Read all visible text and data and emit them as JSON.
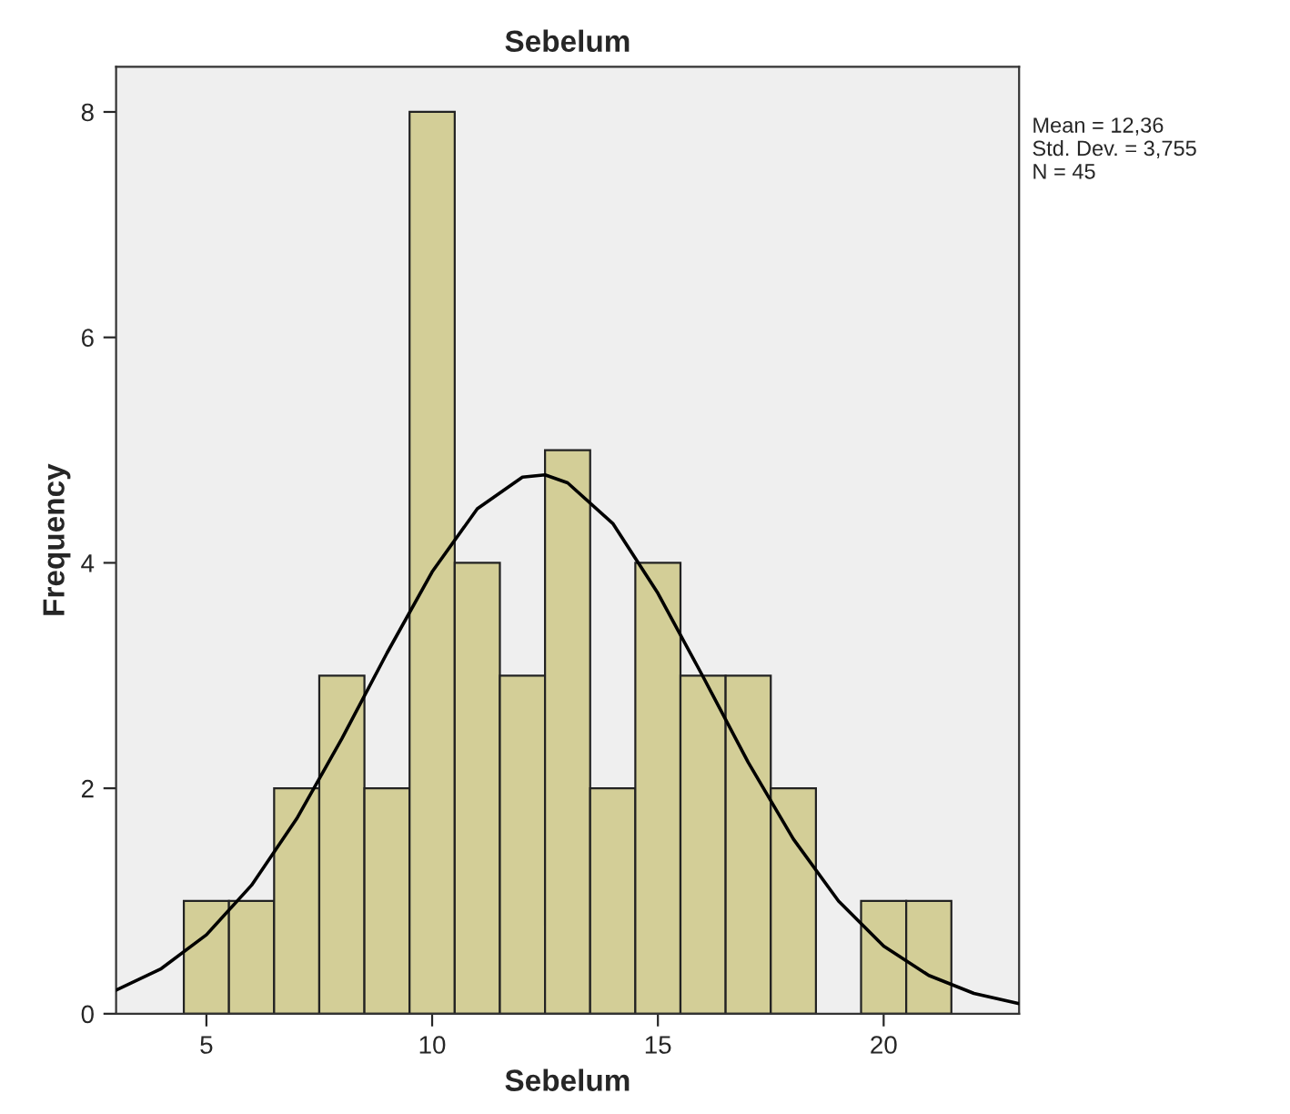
{
  "chart_data": {
    "type": "histogram",
    "title": "Sebelum",
    "xlabel": "Sebelum",
    "ylabel": "Frequency",
    "bins": [
      4.5,
      5.5,
      6.5,
      7.5,
      8.5,
      9.5,
      10.5,
      11.5,
      12.5,
      13.5,
      14.5,
      15.5,
      16.5,
      17.5,
      18.5,
      19.5,
      20.5,
      21.5
    ],
    "values": [
      1,
      1,
      2,
      3,
      2,
      8,
      4,
      3,
      5,
      2,
      4,
      3,
      3,
      2,
      0,
      1,
      1
    ],
    "color": "#d3ce97",
    "series": [
      {
        "type": "line",
        "color": "#000000",
        "x": [
          3,
          4,
          5,
          6,
          7,
          8,
          9,
          10,
          11,
          12,
          12.5,
          13,
          14,
          15,
          16,
          17,
          18,
          19,
          20,
          21,
          22,
          23
        ],
        "values": [
          0.21,
          0.4,
          0.7,
          1.14,
          1.73,
          2.44,
          3.2,
          3.92,
          4.48,
          4.76,
          4.78,
          4.71,
          4.35,
          3.73,
          2.99,
          2.23,
          1.55,
          1.0,
          0.6,
          0.34,
          0.18,
          0.09
        ]
      }
    ],
    "xlim": [
      3,
      23
    ],
    "xticks": [
      5,
      10,
      15,
      20
    ],
    "ylim": [
      0,
      8.4
    ],
    "yticks": [
      0,
      2,
      4,
      6,
      8
    ],
    "grid": false,
    "legend": false,
    "annotations": [
      "Mean = 12,36\nStd. Dev. = 3,755\nN = 45"
    ]
  }
}
